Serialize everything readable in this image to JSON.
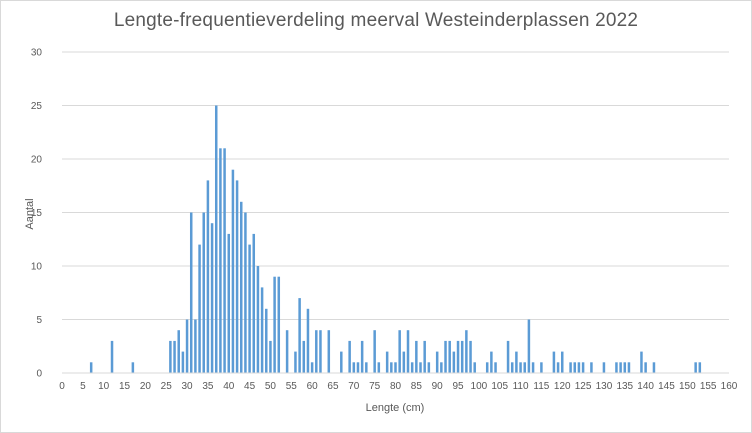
{
  "chart_data": {
    "type": "bar",
    "title": "Lengte-frequentieverdeling  meerval Westeinderplassen  2022",
    "xlabel": "Lengte  (cm)",
    "ylabel": "Aantal",
    "xlim": [
      0,
      160
    ],
    "ylim": [
      0,
      30
    ],
    "x_ticks": [
      0,
      5,
      10,
      15,
      20,
      25,
      30,
      35,
      40,
      45,
      50,
      55,
      60,
      65,
      70,
      75,
      80,
      85,
      90,
      95,
      100,
      105,
      110,
      115,
      120,
      125,
      130,
      135,
      140,
      145,
      150,
      155,
      160
    ],
    "y_ticks": [
      0,
      5,
      10,
      15,
      20,
      25,
      30
    ],
    "grid": "horizontal",
    "legend": "none",
    "bar_color": "#5b9bd5",
    "x": [
      7,
      12,
      17,
      26,
      27,
      28,
      29,
      30,
      31,
      32,
      33,
      34,
      35,
      36,
      37,
      38,
      39,
      40,
      41,
      42,
      43,
      44,
      45,
      46,
      47,
      48,
      49,
      50,
      51,
      52,
      54,
      56,
      57,
      58,
      59,
      60,
      61,
      62,
      64,
      67,
      69,
      70,
      71,
      72,
      73,
      75,
      76,
      78,
      79,
      80,
      81,
      82,
      83,
      84,
      85,
      86,
      87,
      88,
      90,
      91,
      92,
      93,
      94,
      95,
      96,
      97,
      98,
      99,
      102,
      103,
      104,
      107,
      108,
      109,
      110,
      111,
      112,
      113,
      115,
      118,
      119,
      120,
      122,
      123,
      124,
      125,
      127,
      130,
      133,
      134,
      135,
      136,
      139,
      140,
      142,
      152,
      153
    ],
    "values": [
      1,
      3,
      1,
      3,
      3,
      4,
      2,
      5,
      15,
      5,
      12,
      15,
      18,
      14,
      25,
      21,
      21,
      13,
      19,
      18,
      16,
      15,
      12,
      13,
      10,
      8,
      6,
      3,
      9,
      9,
      4,
      2,
      7,
      3,
      6,
      1,
      4,
      4,
      4,
      2,
      3,
      1,
      1,
      3,
      1,
      4,
      1,
      2,
      1,
      1,
      4,
      2,
      4,
      1,
      3,
      1,
      3,
      1,
      2,
      1,
      3,
      3,
      2,
      3,
      3,
      4,
      3,
      1,
      1,
      2,
      1,
      3,
      1,
      2,
      1,
      1,
      5,
      1,
      1,
      2,
      1,
      2,
      1,
      1,
      1,
      1,
      1,
      1,
      1,
      1,
      1,
      1,
      2,
      1,
      1,
      1,
      1
    ]
  }
}
